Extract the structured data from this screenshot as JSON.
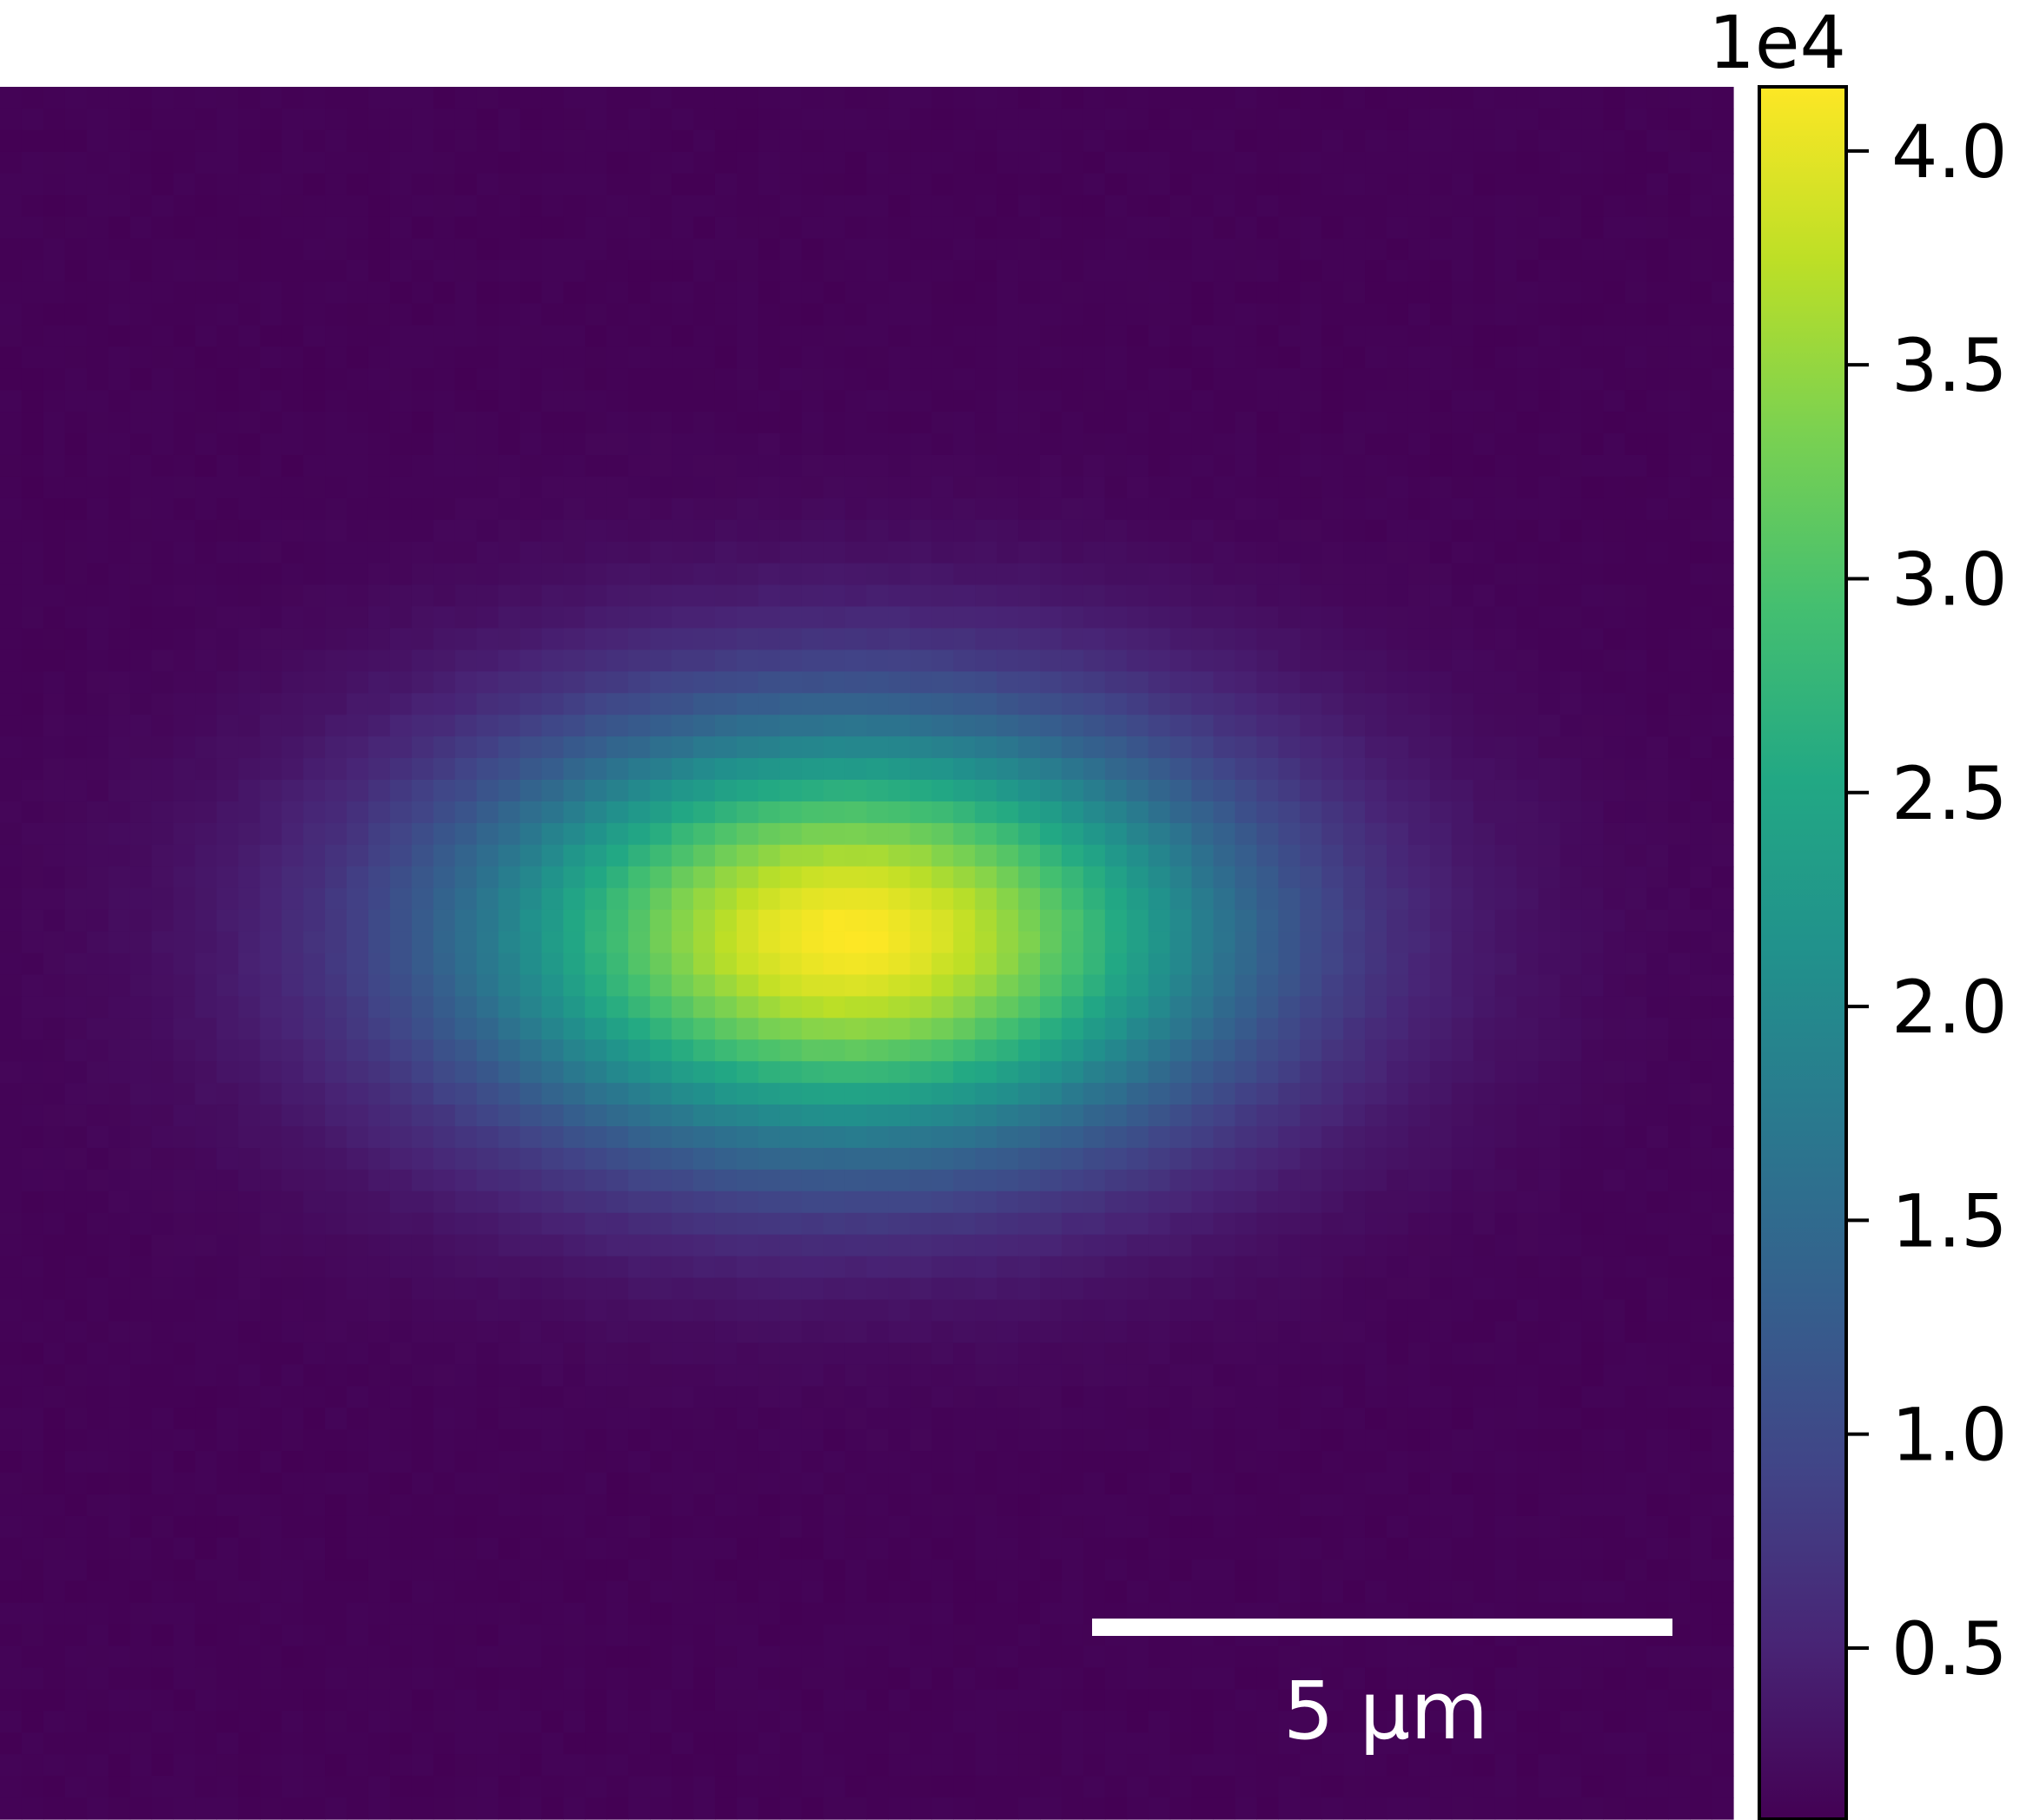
{
  "chart_data": {
    "type": "heatmap",
    "title": "",
    "xlabel": "",
    "ylabel": "",
    "colormap": "viridis",
    "grid": false,
    "legend": "none",
    "image": {
      "grid_size": [
        80,
        80
      ],
      "peak_value": 41500,
      "background_value": 1200,
      "peak_center": [
        0.49,
        0.49
      ],
      "sigma_x": 0.155,
      "sigma_y": 0.087
    },
    "scale_bar": {
      "value": 5,
      "unit": "µm",
      "label": "5 µm",
      "color": "#ffffff",
      "placement": "bottom-right"
    },
    "colorbar": {
      "min": 1000,
      "max": 41500,
      "exponent_label": "1e4",
      "placement": "right",
      "ticks": [
        {
          "value": 5000,
          "label": "0.5"
        },
        {
          "value": 10000,
          "label": "1.0"
        },
        {
          "value": 15000,
          "label": "1.5"
        },
        {
          "value": 20000,
          "label": "2.0"
        },
        {
          "value": 25000,
          "label": "2.5"
        },
        {
          "value": 30000,
          "label": "3.0"
        },
        {
          "value": 35000,
          "label": "3.5"
        },
        {
          "value": 40000,
          "label": "4.0"
        }
      ]
    }
  }
}
